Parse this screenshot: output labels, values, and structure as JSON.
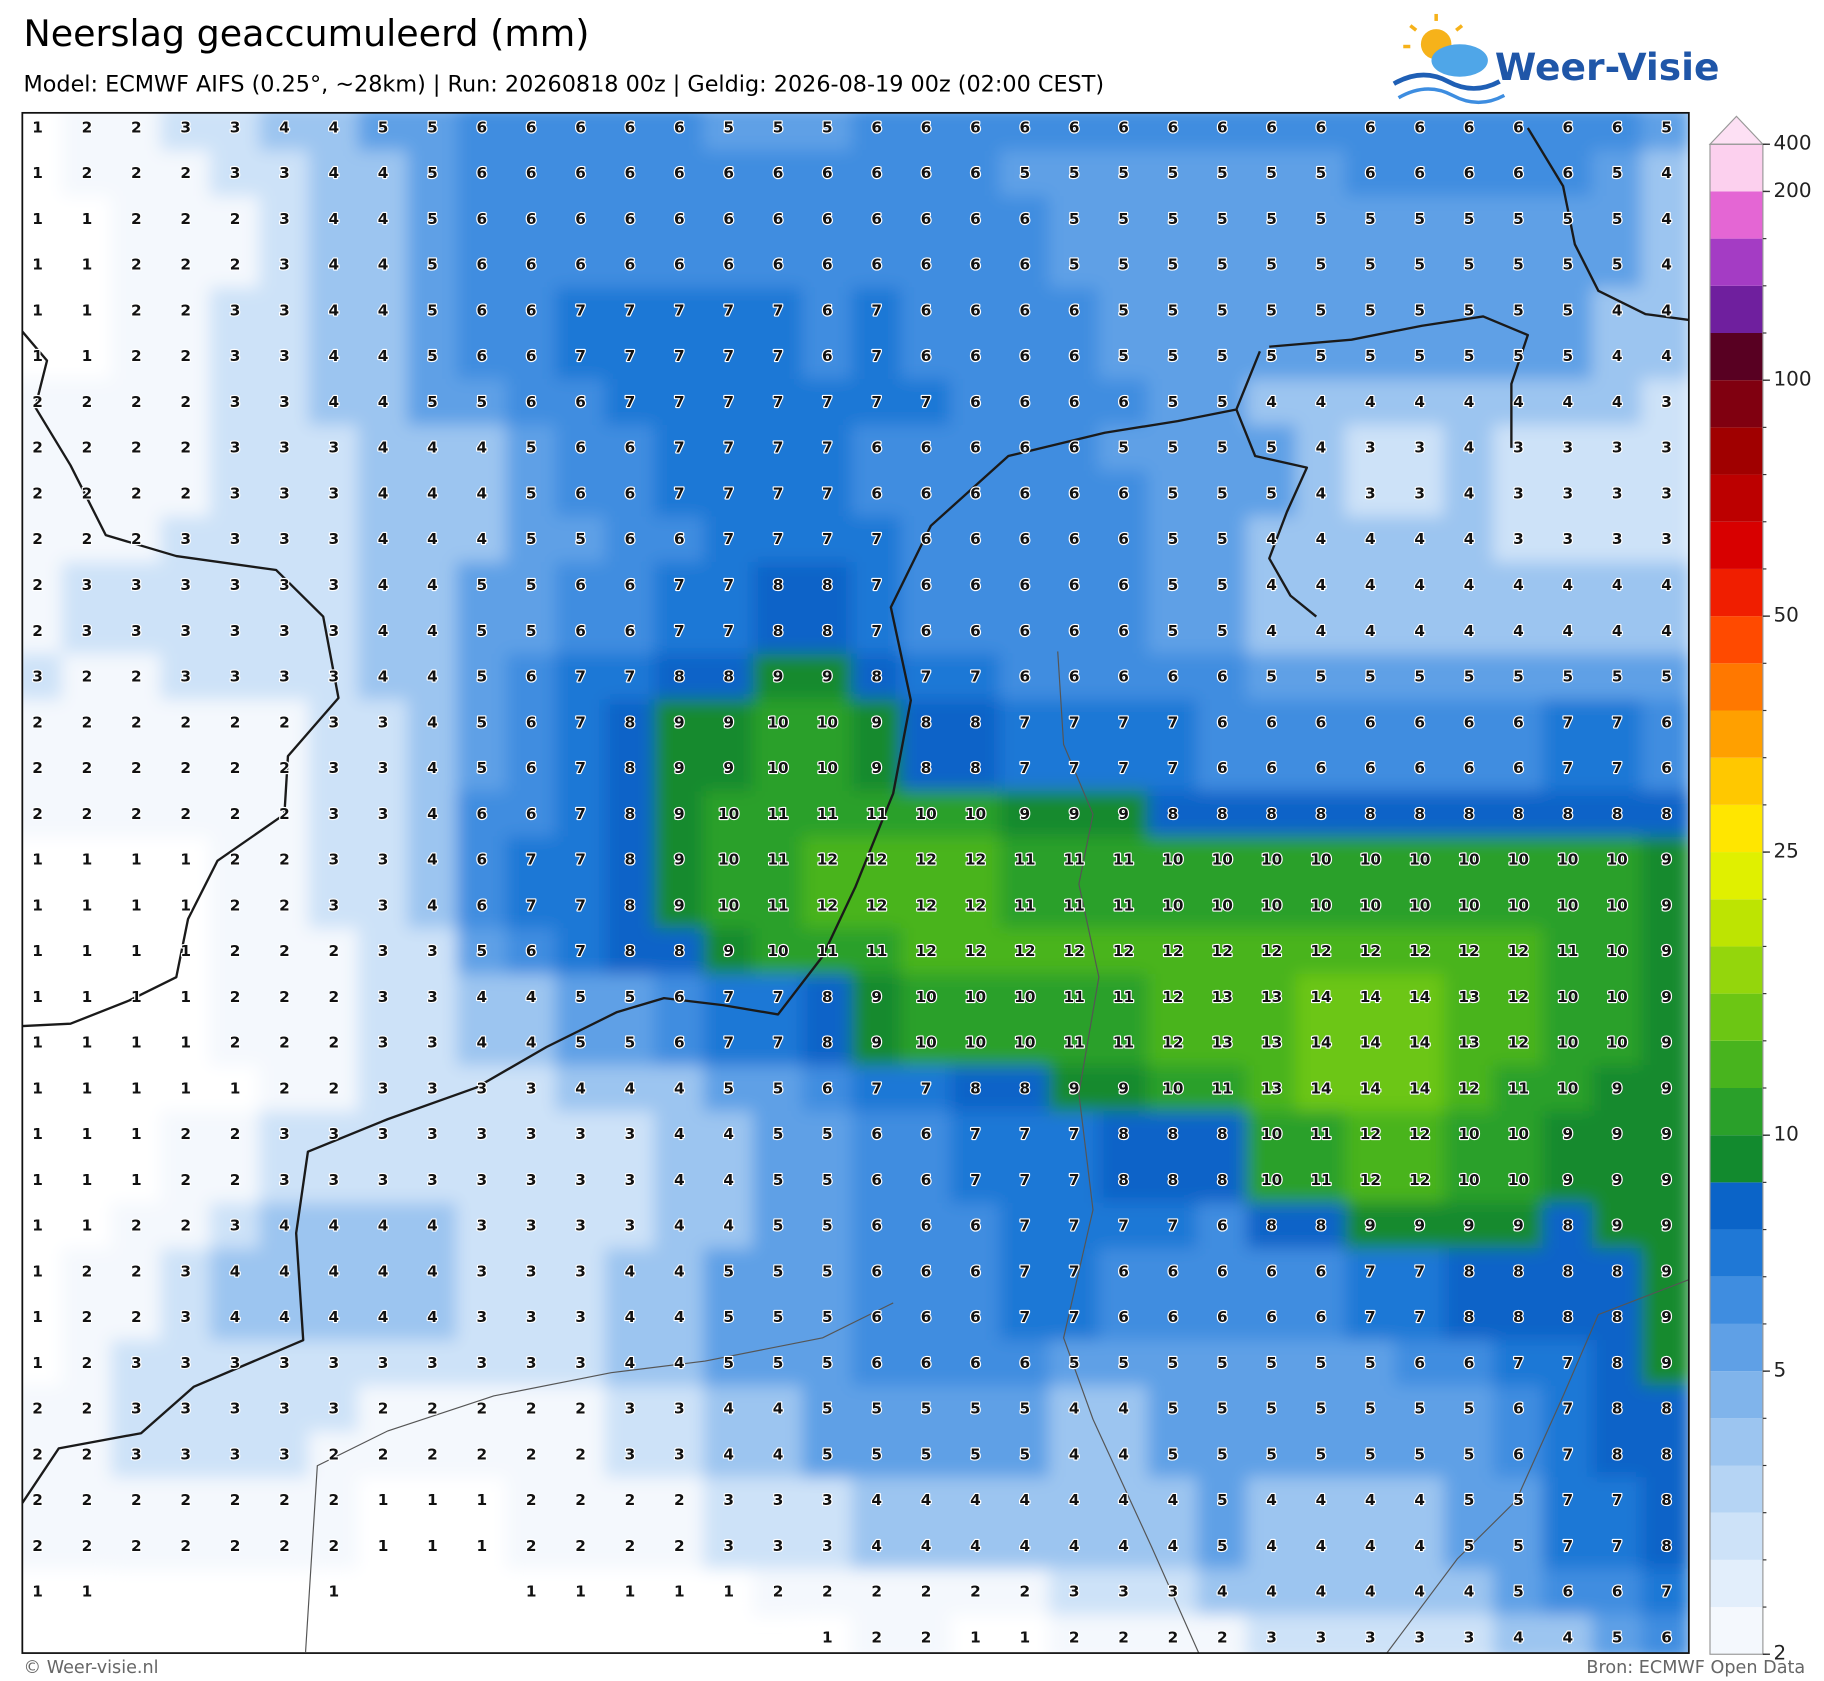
{
  "header": {
    "title": "Neerslag geaccumuleerd (mm)",
    "subtitle": "Model: ECMWF AIFS (0.25°, ~28km)  |  Run: 20260818 00z  |  Geldig: 2026-08-19 00z (02:00 CEST)",
    "logo": "Weer-Visie"
  },
  "grid": {
    "rows": [
      [
        1,
        2,
        2,
        3,
        3,
        4,
        4,
        5,
        5,
        6,
        6,
        6,
        6,
        6,
        5,
        5,
        5,
        6,
        6,
        6,
        6,
        6,
        6,
        6,
        6,
        6,
        6,
        6,
        6,
        6,
        6,
        6,
        6,
        5
      ],
      [
        1,
        2,
        2,
        2,
        3,
        3,
        4,
        4,
        5,
        6,
        6,
        6,
        6,
        6,
        6,
        6,
        6,
        6,
        6,
        6,
        5,
        5,
        5,
        5,
        5,
        5,
        5,
        6,
        6,
        6,
        6,
        6,
        5,
        4
      ],
      [
        1,
        1,
        2,
        2,
        2,
        3,
        4,
        4,
        5,
        6,
        6,
        6,
        6,
        6,
        6,
        6,
        6,
        6,
        6,
        6,
        6,
        5,
        5,
        5,
        5,
        5,
        5,
        5,
        5,
        5,
        5,
        5,
        5,
        4
      ],
      [
        1,
        1,
        2,
        2,
        2,
        3,
        4,
        4,
        5,
        6,
        6,
        6,
        6,
        6,
        6,
        6,
        6,
        6,
        6,
        6,
        6,
        5,
        5,
        5,
        5,
        5,
        5,
        5,
        5,
        5,
        5,
        5,
        5,
        4
      ],
      [
        1,
        1,
        2,
        2,
        3,
        3,
        4,
        4,
        5,
        6,
        6,
        7,
        7,
        7,
        7,
        7,
        6,
        7,
        6,
        6,
        6,
        6,
        5,
        5,
        5,
        5,
        5,
        5,
        5,
        5,
        5,
        5,
        4,
        4
      ],
      [
        1,
        1,
        2,
        2,
        3,
        3,
        4,
        4,
        5,
        6,
        6,
        7,
        7,
        7,
        7,
        7,
        6,
        7,
        6,
        6,
        6,
        6,
        5,
        5,
        5,
        5,
        5,
        5,
        5,
        5,
        5,
        5,
        4,
        4
      ],
      [
        2,
        2,
        2,
        2,
        3,
        3,
        4,
        4,
        5,
        5,
        6,
        6,
        7,
        7,
        7,
        7,
        7,
        7,
        7,
        6,
        6,
        6,
        6,
        5,
        5,
        4,
        4,
        4,
        4,
        4,
        4,
        4,
        4,
        3
      ],
      [
        2,
        2,
        2,
        2,
        3,
        3,
        3,
        4,
        4,
        4,
        5,
        6,
        6,
        7,
        7,
        7,
        7,
        6,
        6,
        6,
        6,
        6,
        5,
        5,
        5,
        5,
        4,
        3,
        3,
        4,
        3,
        3,
        3,
        3
      ],
      [
        2,
        2,
        2,
        2,
        3,
        3,
        3,
        4,
        4,
        4,
        5,
        6,
        6,
        7,
        7,
        7,
        7,
        6,
        6,
        6,
        6,
        6,
        6,
        5,
        5,
        5,
        4,
        3,
        3,
        4,
        3,
        3,
        3,
        3
      ],
      [
        2,
        2,
        2,
        3,
        3,
        3,
        3,
        4,
        4,
        4,
        5,
        5,
        6,
        6,
        7,
        7,
        7,
        7,
        6,
        6,
        6,
        6,
        6,
        5,
        5,
        4,
        4,
        4,
        4,
        4,
        3,
        3,
        3,
        3
      ],
      [
        2,
        3,
        3,
        3,
        3,
        3,
        3,
        4,
        4,
        5,
        5,
        6,
        6,
        7,
        7,
        8,
        8,
        7,
        6,
        6,
        6,
        6,
        6,
        5,
        5,
        4,
        4,
        4,
        4,
        4,
        4,
        4,
        4,
        4
      ],
      [
        2,
        3,
        3,
        3,
        3,
        3,
        3,
        4,
        4,
        5,
        5,
        6,
        6,
        7,
        7,
        8,
        8,
        7,
        6,
        6,
        6,
        6,
        6,
        5,
        5,
        4,
        4,
        4,
        4,
        4,
        4,
        4,
        4,
        4
      ],
      [
        3,
        2,
        2,
        3,
        3,
        3,
        3,
        4,
        4,
        5,
        6,
        7,
        7,
        8,
        8,
        9,
        9,
        8,
        7,
        7,
        6,
        6,
        6,
        6,
        6,
        5,
        5,
        5,
        5,
        5,
        5,
        5,
        5,
        5
      ],
      [
        2,
        2,
        2,
        2,
        2,
        2,
        3,
        3,
        4,
        5,
        6,
        7,
        8,
        9,
        9,
        10,
        10,
        9,
        8,
        8,
        7,
        7,
        7,
        7,
        6,
        6,
        6,
        6,
        6,
        6,
        6,
        7,
        7,
        6
      ],
      [
        2,
        2,
        2,
        2,
        2,
        2,
        3,
        3,
        4,
        5,
        6,
        7,
        8,
        9,
        9,
        10,
        10,
        9,
        8,
        8,
        7,
        7,
        7,
        7,
        6,
        6,
        6,
        6,
        6,
        6,
        6,
        7,
        7,
        6
      ],
      [
        2,
        2,
        2,
        2,
        2,
        2,
        3,
        3,
        4,
        6,
        6,
        7,
        8,
        9,
        10,
        11,
        11,
        11,
        10,
        10,
        9,
        9,
        9,
        8,
        8,
        8,
        8,
        8,
        8,
        8,
        8,
        8,
        8,
        8
      ],
      [
        1,
        1,
        1,
        1,
        2,
        2,
        3,
        3,
        4,
        6,
        7,
        7,
        8,
        9,
        10,
        11,
        12,
        12,
        12,
        12,
        11,
        11,
        11,
        10,
        10,
        10,
        10,
        10,
        10,
        10,
        10,
        10,
        10,
        9
      ],
      [
        1,
        1,
        1,
        1,
        2,
        2,
        3,
        3,
        4,
        6,
        7,
        7,
        8,
        9,
        10,
        11,
        12,
        12,
        12,
        12,
        11,
        11,
        11,
        10,
        10,
        10,
        10,
        10,
        10,
        10,
        10,
        10,
        10,
        9
      ],
      [
        1,
        1,
        1,
        1,
        2,
        2,
        2,
        3,
        3,
        5,
        6,
        7,
        8,
        8,
        9,
        10,
        11,
        11,
        12,
        12,
        12,
        12,
        12,
        12,
        12,
        12,
        12,
        12,
        12,
        12,
        12,
        11,
        10,
        9
      ],
      [
        1,
        1,
        1,
        1,
        2,
        2,
        2,
        3,
        3,
        4,
        4,
        5,
        5,
        6,
        7,
        7,
        8,
        9,
        10,
        10,
        10,
        11,
        11,
        12,
        13,
        13,
        14,
        14,
        14,
        13,
        12,
        10,
        10,
        9
      ],
      [
        1,
        1,
        1,
        1,
        2,
        2,
        2,
        3,
        3,
        4,
        4,
        5,
        5,
        6,
        7,
        7,
        8,
        9,
        10,
        10,
        10,
        11,
        11,
        12,
        13,
        13,
        14,
        14,
        14,
        13,
        12,
        10,
        10,
        9
      ],
      [
        1,
        1,
        1,
        1,
        1,
        2,
        2,
        3,
        3,
        3,
        3,
        4,
        4,
        4,
        5,
        5,
        6,
        7,
        7,
        8,
        8,
        9,
        9,
        10,
        11,
        13,
        14,
        14,
        14,
        12,
        11,
        10,
        9,
        9
      ],
      [
        1,
        1,
        1,
        2,
        2,
        3,
        3,
        3,
        3,
        3,
        3,
        3,
        3,
        4,
        4,
        5,
        5,
        6,
        6,
        7,
        7,
        7,
        8,
        8,
        8,
        10,
        11,
        12,
        12,
        10,
        10,
        9,
        9,
        9
      ],
      [
        1,
        1,
        1,
        2,
        2,
        3,
        3,
        3,
        3,
        3,
        3,
        3,
        3,
        4,
        4,
        5,
        5,
        6,
        6,
        7,
        7,
        7,
        8,
        8,
        8,
        10,
        11,
        12,
        12,
        10,
        10,
        9,
        9,
        9
      ],
      [
        1,
        1,
        2,
        2,
        3,
        4,
        4,
        4,
        4,
        3,
        3,
        3,
        3,
        4,
        4,
        5,
        5,
        6,
        6,
        6,
        7,
        7,
        7,
        7,
        6,
        8,
        8,
        9,
        9,
        9,
        9,
        8,
        9,
        9
      ],
      [
        1,
        2,
        2,
        3,
        4,
        4,
        4,
        4,
        4,
        3,
        3,
        3,
        4,
        4,
        5,
        5,
        5,
        6,
        6,
        6,
        7,
        7,
        6,
        6,
        6,
        6,
        6,
        7,
        7,
        8,
        8,
        8,
        8,
        9
      ],
      [
        1,
        2,
        2,
        3,
        4,
        4,
        4,
        4,
        4,
        3,
        3,
        3,
        4,
        4,
        5,
        5,
        5,
        6,
        6,
        6,
        7,
        7,
        6,
        6,
        6,
        6,
        6,
        7,
        7,
        8,
        8,
        8,
        8,
        9
      ],
      [
        1,
        2,
        3,
        3,
        3,
        3,
        3,
        3,
        3,
        3,
        3,
        3,
        4,
        4,
        5,
        5,
        5,
        6,
        6,
        6,
        6,
        5,
        5,
        5,
        5,
        5,
        5,
        5,
        6,
        6,
        7,
        7,
        8,
        9
      ],
      [
        2,
        2,
        3,
        3,
        3,
        3,
        3,
        2,
        2,
        2,
        2,
        2,
        3,
        3,
        4,
        4,
        5,
        5,
        5,
        5,
        5,
        4,
        4,
        5,
        5,
        5,
        5,
        5,
        5,
        5,
        6,
        7,
        8,
        8
      ],
      [
        2,
        2,
        3,
        3,
        3,
        3,
        2,
        2,
        2,
        2,
        2,
        2,
        3,
        3,
        4,
        4,
        5,
        5,
        5,
        5,
        5,
        4,
        4,
        5,
        5,
        5,
        5,
        5,
        5,
        5,
        6,
        7,
        8,
        8
      ],
      [
        2,
        2,
        2,
        2,
        2,
        2,
        2,
        1,
        1,
        1,
        2,
        2,
        2,
        2,
        3,
        3,
        3,
        4,
        4,
        4,
        4,
        4,
        4,
        4,
        5,
        4,
        4,
        4,
        4,
        5,
        5,
        7,
        7,
        8
      ],
      [
        2,
        2,
        2,
        2,
        2,
        2,
        2,
        1,
        1,
        1,
        2,
        2,
        2,
        2,
        3,
        3,
        3,
        4,
        4,
        4,
        4,
        4,
        4,
        4,
        5,
        4,
        4,
        4,
        4,
        5,
        5,
        7,
        7,
        8
      ],
      [
        1,
        1,
        null,
        null,
        null,
        null,
        1,
        null,
        null,
        null,
        1,
        1,
        1,
        1,
        1,
        2,
        2,
        2,
        2,
        2,
        2,
        3,
        3,
        3,
        4,
        4,
        4,
        4,
        4,
        4,
        5,
        6,
        6,
        7
      ],
      [
        null,
        null,
        null,
        null,
        null,
        null,
        null,
        null,
        null,
        null,
        null,
        null,
        null,
        null,
        null,
        null,
        1,
        2,
        2,
        1,
        1,
        2,
        2,
        2,
        2,
        3,
        3,
        3,
        3,
        3,
        4,
        4,
        5,
        6
      ]
    ]
  },
  "colorbar": {
    "levels": [
      2,
      2.5,
      3,
      3.5,
      4,
      4.5,
      5,
      6,
      7,
      8,
      9,
      10,
      12,
      14,
      16,
      18,
      20,
      25,
      30,
      35,
      40,
      45,
      50,
      60,
      70,
      80,
      90,
      100,
      125,
      150,
      175,
      200,
      400
    ],
    "ticks": [
      2,
      5,
      10,
      25,
      50,
      100,
      200,
      400
    ],
    "colors": [
      "#f4f8fd",
      "#e2eefb",
      "#cde2f8",
      "#b5d4f4",
      "#9cc5f0",
      "#80b4eb",
      "#5fa0e6",
      "#3f8de0",
      "#1f78d6",
      "#0b64c8",
      "#128a2e",
      "#2aa02a",
      "#48b41e",
      "#6cc614",
      "#94d60c",
      "#bde402",
      "#e0f000",
      "#ffe600",
      "#ffc800",
      "#ffa000",
      "#ff7800",
      "#ff4a00",
      "#f01e00",
      "#d80000",
      "#bc0000",
      "#a00000",
      "#800010",
      "#580022",
      "#6f1f9e",
      "#a43cc4",
      "#e466d4",
      "#fcd0ee"
    ],
    "extend_color": "#fde0f4"
  },
  "footer": {
    "left": "© Weer-visie.nl",
    "right": "Bron: ECMWF Open Data"
  }
}
